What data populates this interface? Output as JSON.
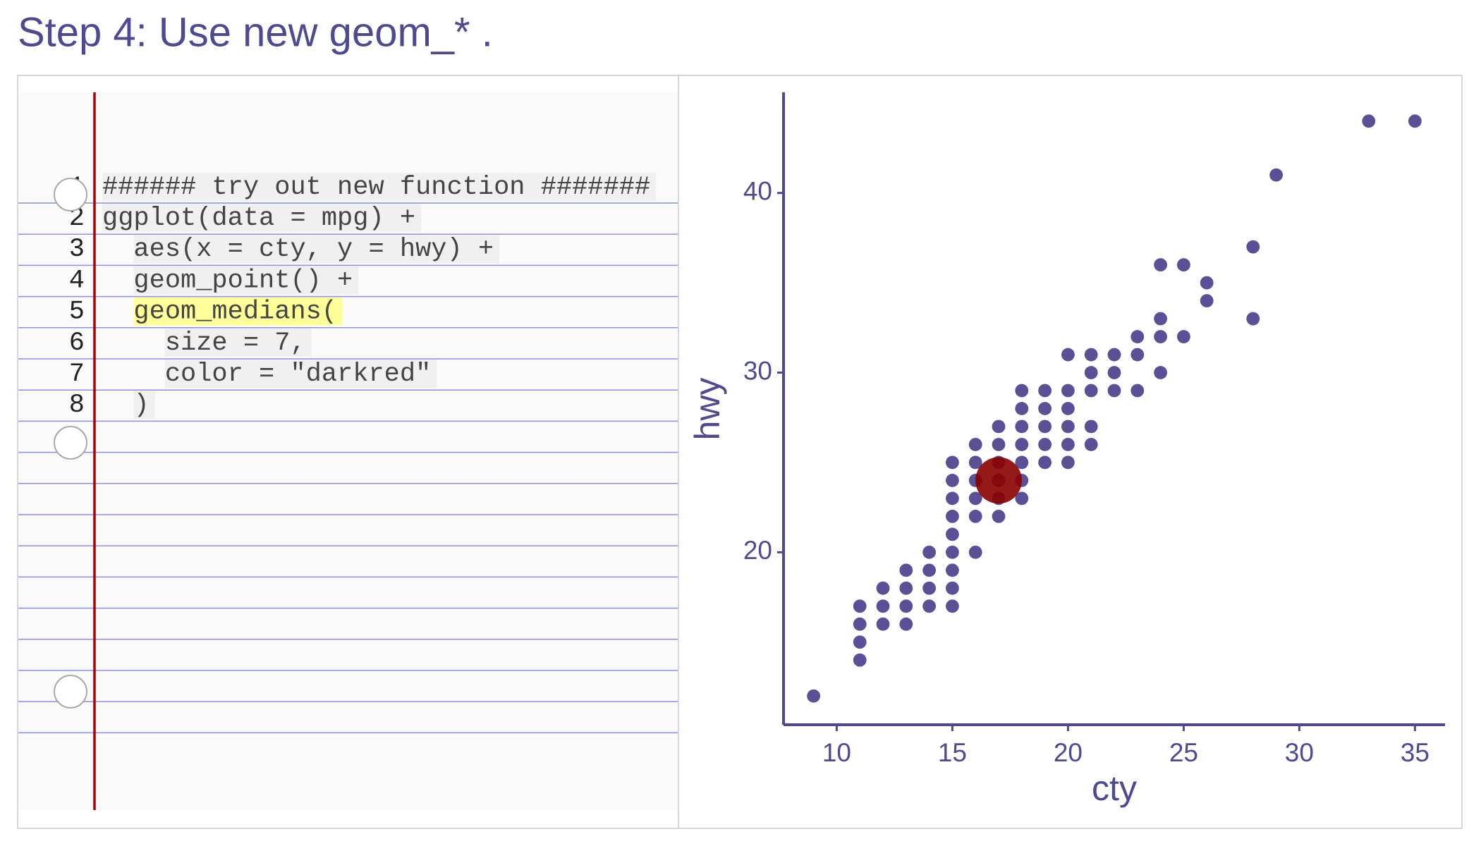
{
  "title": "Step 4: Use new geom_* .",
  "code": {
    "line_numbers": [
      1,
      2,
      3,
      4,
      5,
      6,
      7,
      8
    ],
    "lines": [
      "###### try out new function #######",
      "ggplot(data = mpg) +",
      "  aes(x = cty, y = hwy) +",
      "  geom_point() +",
      "  geom_medians(",
      "    size = 7,",
      "    color = \"darkred\"",
      "  )"
    ],
    "highlighted_line": 4
  },
  "chart_data": {
    "type": "scatter",
    "x_label": "cty",
    "y_label": "hwy",
    "xlim": [
      7.7,
      36.3
    ],
    "ylim": [
      10.4,
      45.6
    ],
    "xticks": [
      10,
      15,
      20,
      25,
      30,
      35
    ],
    "yticks": [
      20,
      30,
      40
    ],
    "series": [
      {
        "color": "#483d8b",
        "size": 2,
        "x": [
          9,
          11,
          11,
          11,
          11,
          12,
          12,
          12,
          13,
          13,
          13,
          13,
          14,
          14,
          14,
          14,
          15,
          15,
          15,
          15,
          15,
          15,
          15,
          15,
          15,
          16,
          16,
          16,
          16,
          16,
          16,
          17,
          17,
          17,
          17,
          17,
          17,
          18,
          18,
          18,
          18,
          18,
          18,
          18,
          19,
          19,
          19,
          19,
          19,
          20,
          20,
          20,
          20,
          20,
          20,
          21,
          21,
          21,
          21,
          21,
          22,
          22,
          22,
          23,
          23,
          23,
          24,
          24,
          24,
          24,
          25,
          25,
          26,
          26,
          28,
          28,
          29,
          33,
          35
        ],
        "values": [
          12,
          17,
          16,
          15,
          14,
          18,
          17,
          16,
          19,
          18,
          17,
          16,
          20,
          19,
          18,
          17,
          25,
          24,
          23,
          22,
          21,
          20,
          19,
          18,
          17,
          26,
          25,
          24,
          23,
          22,
          20,
          27,
          26,
          25,
          24,
          23,
          22,
          29,
          28,
          27,
          26,
          25,
          24,
          23,
          29,
          28,
          27,
          26,
          25,
          31,
          29,
          28,
          27,
          26,
          25,
          31,
          30,
          29,
          27,
          26,
          31,
          30,
          29,
          32,
          31,
          29,
          36,
          33,
          32,
          30,
          36,
          32,
          35,
          34,
          37,
          33,
          41,
          44,
          44
        ]
      },
      {
        "color": "#8b0000",
        "size": 7,
        "x": [
          17
        ],
        "values": [
          24
        ]
      }
    ]
  }
}
